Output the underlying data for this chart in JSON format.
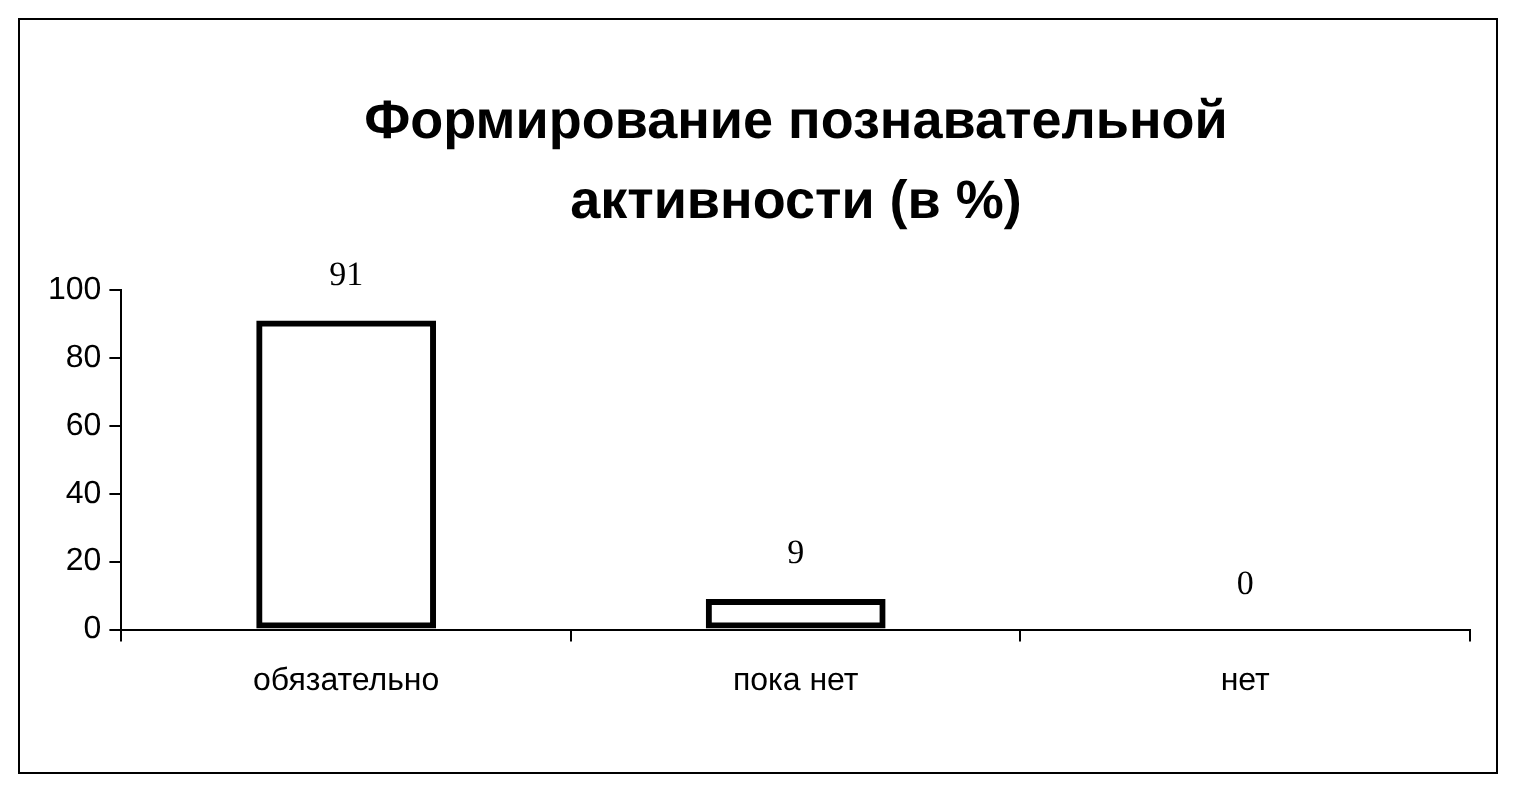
{
  "chart_data": {
    "type": "bar",
    "title": "Формирование познавательной активности (в %)",
    "categories": [
      "обязательно",
      "пока нет",
      "нет"
    ],
    "values": [
      91,
      9,
      0
    ],
    "color": "#000000",
    "ylim": [
      0,
      100
    ],
    "yticks": [
      0,
      20,
      40,
      60,
      80,
      100
    ],
    "grid": false,
    "legend": false,
    "data_labels": true
  }
}
